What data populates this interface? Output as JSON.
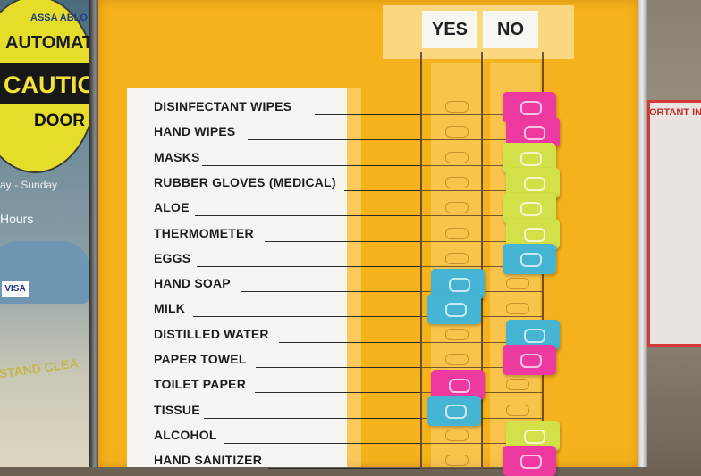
{
  "door_sign": {
    "brand": "ASSA ABLOY",
    "line1": "AUTOMAT",
    "line2": "CAUTIO",
    "line3": "DOOR"
  },
  "door_text": {
    "days": "ay - Sunday",
    "hours": "Hours",
    "card": "VISA",
    "floor": "- STAND CLEA"
  },
  "board_title": "ORTANT INF",
  "columns": {
    "yes": "YES",
    "no": "NO"
  },
  "colors": {
    "panel": "#f6b21c",
    "pink": "#ee3aa0",
    "lime": "#d2e04a",
    "blue": "#45b5d3"
  },
  "items": [
    {
      "label": "DISINFECTANT WIPES",
      "clip": "no",
      "clip_color": "pink"
    },
    {
      "label": "HAND WIPES",
      "clip": "no",
      "clip_color": "pink"
    },
    {
      "label": "MASKS",
      "clip": "no",
      "clip_color": "lime"
    },
    {
      "label": "RUBBER GLOVES (MEDICAL)",
      "clip": "no",
      "clip_color": "lime"
    },
    {
      "label": "ALOE",
      "clip": "no",
      "clip_color": "lime"
    },
    {
      "label": "THERMOMETER",
      "clip": "no",
      "clip_color": "lime"
    },
    {
      "label": "EGGS",
      "clip": "no",
      "clip_color": "blue"
    },
    {
      "label": "HAND SOAP",
      "clip": "yes",
      "clip_color": "blue"
    },
    {
      "label": "MILK",
      "clip": "yes",
      "clip_color": "blue"
    },
    {
      "label": "DISTILLED WATER",
      "clip": "no",
      "clip_color": "blue"
    },
    {
      "label": "PAPER TOWEL",
      "clip": "no",
      "clip_color": "pink"
    },
    {
      "label": "TOILET PAPER",
      "clip": "yes",
      "clip_color": "pink"
    },
    {
      "label": "TISSUE",
      "clip": "yes",
      "clip_color": "blue"
    },
    {
      "label": "ALCOHOL",
      "clip": "no",
      "clip_color": "lime"
    },
    {
      "label": "HAND SANITIZER",
      "clip": "no",
      "clip_color": "pink"
    }
  ]
}
